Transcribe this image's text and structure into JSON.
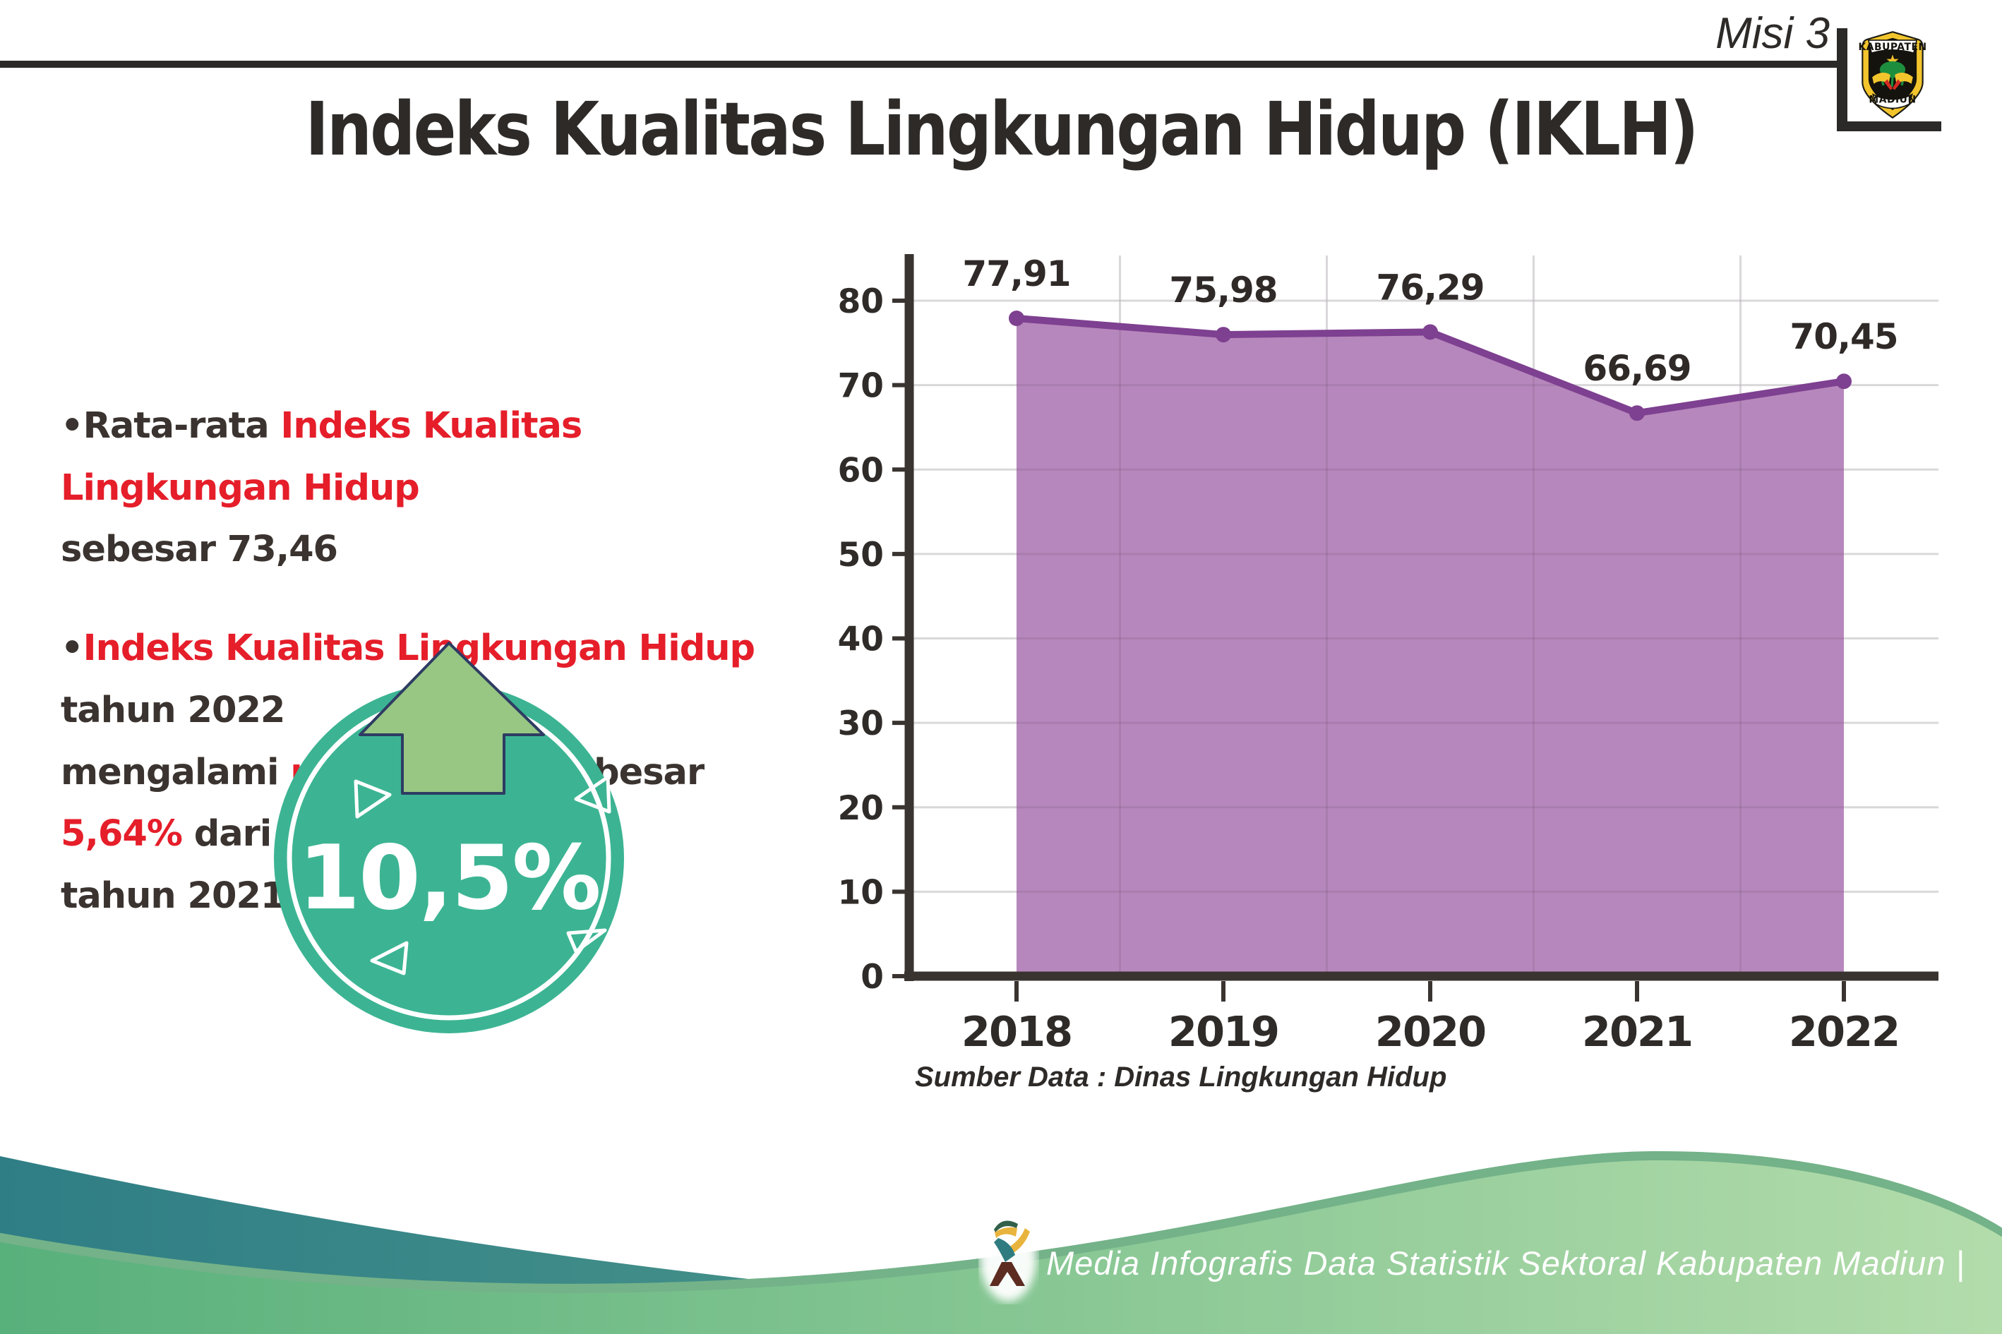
{
  "header": {
    "misi": "Misi 3",
    "title": "Indeks Kualitas Lingkungan Hidup (IKLH)"
  },
  "logo": {
    "top_text": "KABUPATEN",
    "bottom_text": "MADIUN"
  },
  "bullets": {
    "b1": {
      "s1": "•Rata-rata ",
      "s2": "Indeks Kualitas Lingkungan Hidup",
      "line2": "sebesar 73,46"
    },
    "b2": {
      "s1": "•",
      "s2": "Indeks Kualitas Lingkungan Hidup",
      "s3": " tahun 2022",
      "l2s1": "mengalami ",
      "l2s2": "peningkatan",
      "l2s3": " sebesar ",
      "l2s4": "5,64%",
      "l2s5": " dari",
      "line3": "tahun 2021"
    }
  },
  "badge": {
    "value": "10,5%"
  },
  "chart_data": {
    "type": "area",
    "categories": [
      "2018",
      "2019",
      "2020",
      "2021",
      "2022"
    ],
    "values": [
      77.91,
      75.98,
      76.29,
      66.69,
      70.45
    ],
    "point_labels": [
      "77,91",
      "75,98",
      "76,29",
      "66,69",
      "70,45"
    ],
    "yticks": [
      0,
      10,
      20,
      30,
      40,
      50,
      60,
      70,
      80
    ],
    "ylim": [
      0,
      85
    ],
    "grid": true,
    "legend": "none",
    "title": "",
    "xlabel": "",
    "ylabel": ""
  },
  "source_text": "Sumber Data : Dinas Lingkungan Hidup",
  "footer": {
    "text": "Media Infografis Data Statistik Sektoral Kabupaten Madiun |"
  },
  "colors": {
    "accent_red": "#e51e2a",
    "text_dark": "#2d2a28",
    "chart_line_purple": "#7e4090",
    "chart_fill_purple": "#b687bc",
    "badge_teal": "#3cb493",
    "arrow_green": "#97c783",
    "arrow_outline_navy": "#2e3c63",
    "wave_teal": "#357f85",
    "wave_green": "#58b07b",
    "logo_yellow": "#f3c52d"
  }
}
